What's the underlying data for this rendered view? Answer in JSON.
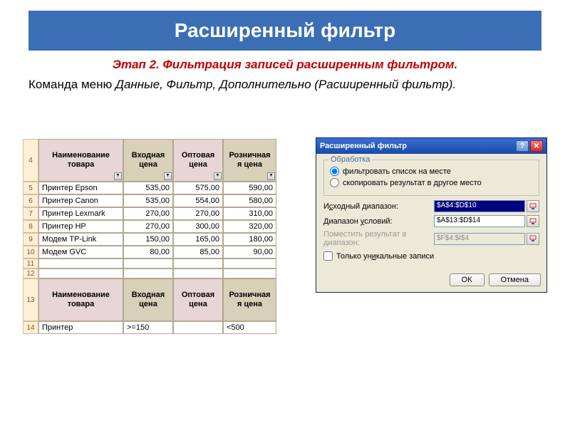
{
  "page": {
    "title": "Расширенный фильтр",
    "subtitle": "Этап 2. Фильтрация записей расширенным фильтром.",
    "body_prefix": "Команда меню ",
    "body_italic": "Данные, Фильтр, Дополнительно (Расширенный фильтр)."
  },
  "table1": {
    "header_row_num": "4",
    "headers": [
      "Наименование товара",
      "Входная цена",
      "Оптовая цена",
      "Розничная я цена"
    ],
    "header_colors": [
      "#e8d5d5",
      "#d8d0b8",
      "#e8d5d5",
      "#d8d0b8"
    ],
    "rows": [
      {
        "n": "5",
        "cells": [
          "Принтер Epson",
          "535,00",
          "575,00",
          "590,00"
        ]
      },
      {
        "n": "6",
        "cells": [
          "Принтер Canon",
          "535,00",
          "554,00",
          "580,00"
        ]
      },
      {
        "n": "7",
        "cells": [
          "Принтер Lexmark",
          "270,00",
          "270,00",
          "310,00"
        ]
      },
      {
        "n": "8",
        "cells": [
          "Принтер HP",
          "270,00",
          "300,00",
          "320,00"
        ]
      },
      {
        "n": "9",
        "cells": [
          "Модем TP-Link",
          "150,00",
          "165,00",
          "180,00"
        ]
      },
      {
        "n": "10",
        "cells": [
          "Модем GVC",
          "80,00",
          "85,00",
          "90,00"
        ]
      }
    ],
    "empty_rows": [
      "11",
      "12"
    ]
  },
  "table2": {
    "header_row_num": "13",
    "headers": [
      "Наименование товара",
      "Входная цена",
      "Оптовая цена",
      "Розничная я цена"
    ],
    "header_colors": [
      "#e8d5d5",
      "#d8d0b8",
      "#e8d5d5",
      "#d8d0b8"
    ],
    "row": {
      "n": "14",
      "cells": [
        "Принтер",
        ">=150",
        "",
        "<500"
      ]
    }
  },
  "dialog": {
    "title": "Расширенный фильтр",
    "group_label": "Обработка",
    "radio1": "фильтровать список на месте",
    "radio2": "скопировать результат в другое место",
    "field1_label_pre": "И",
    "field1_label_u": "с",
    "field1_label_post": "ходный диапазон:",
    "field1_value": "$A$4:$D$10",
    "field2_label_pre": "Диапазон ",
    "field2_label_u": "у",
    "field2_label_post": "словий:",
    "field2_value": "$A$13:$D$14",
    "field3_label": "Поместить результат в диапазон:",
    "field3_value": "$F$4:$I$4",
    "checkbox_pre": "Только ун",
    "checkbox_u": "и",
    "checkbox_post": "кальные записи",
    "ok_btn": "ОК",
    "cancel_btn": "Отмена"
  }
}
